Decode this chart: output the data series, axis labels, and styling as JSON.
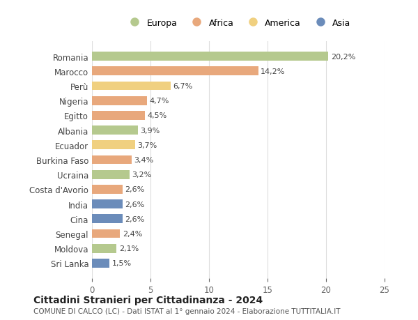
{
  "countries": [
    "Romania",
    "Marocco",
    "Perù",
    "Nigeria",
    "Egitto",
    "Albania",
    "Ecuador",
    "Burkina Faso",
    "Ucraina",
    "Costa d'Avorio",
    "India",
    "Cina",
    "Senegal",
    "Moldova",
    "Sri Lanka"
  ],
  "values": [
    20.2,
    14.2,
    6.7,
    4.7,
    4.5,
    3.9,
    3.7,
    3.4,
    3.2,
    2.6,
    2.6,
    2.6,
    2.4,
    2.1,
    1.5
  ],
  "labels": [
    "20,2%",
    "14,2%",
    "6,7%",
    "4,7%",
    "4,5%",
    "3,9%",
    "3,7%",
    "3,4%",
    "3,2%",
    "2,6%",
    "2,6%",
    "2,6%",
    "2,4%",
    "2,1%",
    "1,5%"
  ],
  "continents": [
    "Europa",
    "Africa",
    "America",
    "Africa",
    "Africa",
    "Europa",
    "America",
    "Africa",
    "Europa",
    "Africa",
    "Asia",
    "Asia",
    "Africa",
    "Europa",
    "Asia"
  ],
  "colors": {
    "Europa": "#b5c98e",
    "Africa": "#e8a87c",
    "America": "#f0d080",
    "Asia": "#6b8cba"
  },
  "legend_order": [
    "Europa",
    "Africa",
    "America",
    "Asia"
  ],
  "title": "Cittadini Stranieri per Cittadinanza - 2024",
  "subtitle": "COMUNE DI CALCO (LC) - Dati ISTAT al 1° gennaio 2024 - Elaborazione TUTTITALIA.IT",
  "xlim": [
    0,
    25
  ],
  "xticks": [
    0,
    5,
    10,
    15,
    20,
    25
  ],
  "background_color": "#ffffff",
  "grid_color": "#dddddd"
}
